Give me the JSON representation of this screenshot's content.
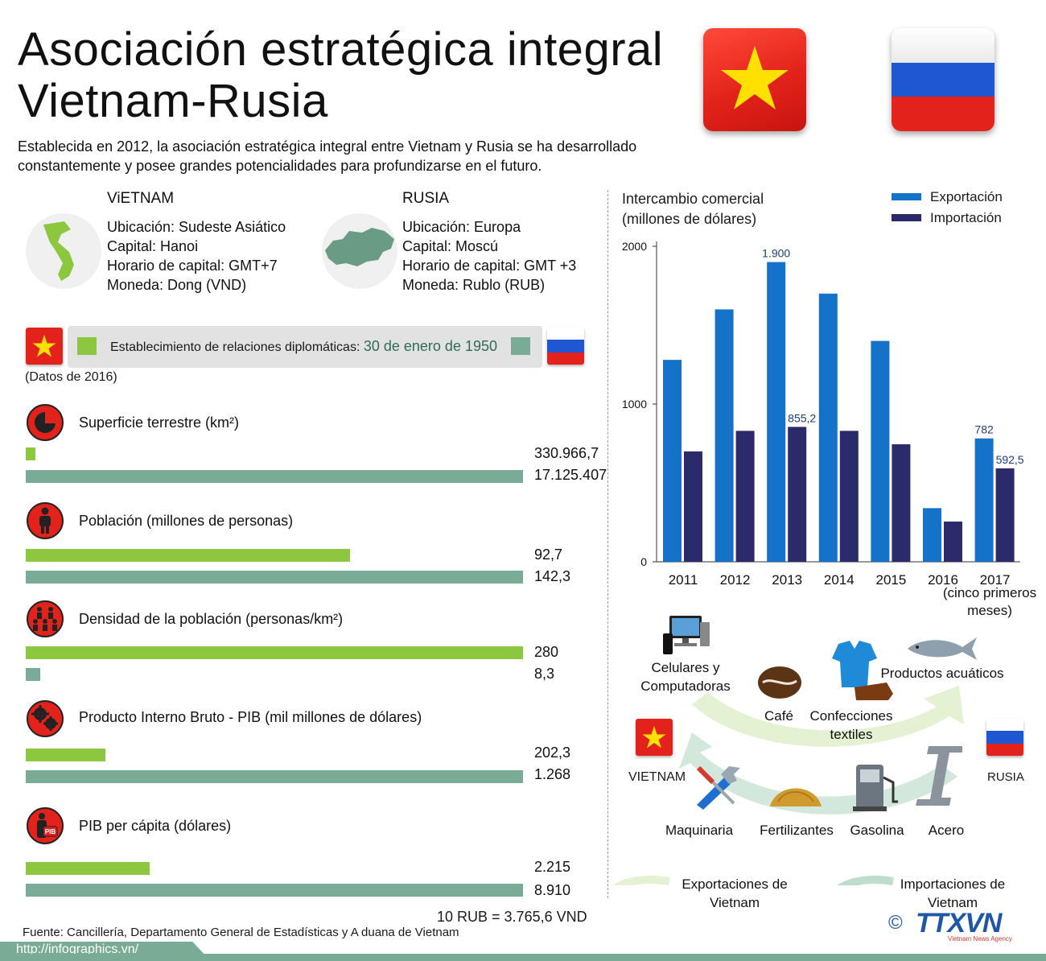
{
  "header": {
    "title": "Asociación estratégica integral Vietnam-Rusia",
    "subtitle": "Establecida en 2012, la asociación estratégica integral entre Vietnam y Rusia se ha desarrollado constantemente y posee grandes potencialidades para profundizarse en el futuro."
  },
  "countries": {
    "vietnam": {
      "name": "ViETNAM",
      "ubicacion": "Ubicación: Sudeste Asiático",
      "capital": "Capital: Hanoi",
      "horario": "Horario de capital: GMT+7",
      "moneda": "Moneda: Dong (VND)"
    },
    "rusia": {
      "name": "RUSIA",
      "ubicacion": "Ubicación: Europa",
      "capital": "Capital: Moscú",
      "horario": "Horario de capital: GMT +3",
      "moneda": "Moneda: Rublo (RUB)"
    }
  },
  "diplomatic": {
    "label": "Establecimiento de relaciones diplomáticas:",
    "date": "30 de enero de 1950"
  },
  "data_year_note": "(Datos de 2016)",
  "stats": [
    {
      "label": "Superficie terrestre (km²)",
      "vn_value": "330.966,7",
      "ru_value": "17.125.407",
      "vn_num": 330966.7,
      "ru_num": 17125407,
      "icon": "pie-chart-icon"
    },
    {
      "label": "Población (millones de personas)",
      "vn_value": "92,7",
      "ru_value": "142,3",
      "vn_num": 92.7,
      "ru_num": 142.3,
      "icon": "person-icon"
    },
    {
      "label": "Densidad de la población (personas/km²)",
      "vn_value": "280",
      "ru_value": "8,3",
      "vn_num": 280,
      "ru_num": 8.3,
      "icon": "people-group-icon"
    },
    {
      "label": "Producto Interno Bruto - PIB (mil millones de dólares)",
      "vn_value": "202,3",
      "ru_value": "1.268",
      "vn_num": 202.3,
      "ru_num": 1268,
      "icon": "gears-icon"
    },
    {
      "label": "PIB per cápita (dólares)",
      "vn_value": "2.215",
      "ru_value": "8.910",
      "vn_num": 2215,
      "ru_num": 8910,
      "icon": "pib-person-icon"
    }
  ],
  "exchange_rate": "10 RUB = 3.765,6 VND",
  "source": "Fuente: Cancillería, Departamento General de Estadísticas y A duana de Vietnam",
  "url": "http://infographics.vn/",
  "chart_data": {
    "type": "bar",
    "title": "Intercambio comercial",
    "subtitle": "(millones de dólares)",
    "categories": [
      "2011",
      "2012",
      "2013",
      "2014",
      "2015",
      "2016",
      "2017"
    ],
    "category_note": "(cinco primeros meses)",
    "series": [
      {
        "name": "Exportación",
        "color": "#1473c8",
        "values": [
          1280,
          1600,
          1900,
          1700,
          1400,
          340,
          782
        ]
      },
      {
        "name": "Importación",
        "color": "#2b2a6b",
        "values": [
          700,
          830,
          855.2,
          830,
          745,
          255,
          592.5
        ]
      }
    ],
    "data_labels": {
      "2013-export": "1.900",
      "2013-import": "855,2",
      "2017-export": "782",
      "2017-import": "592,5"
    },
    "yticks": [
      "0",
      "1000",
      "2000"
    ],
    "ylim": [
      0,
      2000
    ],
    "legend_position": "top-right",
    "grid": false
  },
  "exchange": {
    "vn_label": "VIETNAM",
    "ru_label": "RUSIA",
    "exports": [
      "Celulares y Computadoras",
      "Café",
      "Confecciones textiles",
      "Productos acuáticos"
    ],
    "imports": [
      "Maquinaria",
      "Fertilizantes",
      "Gasolina",
      "Acero"
    ],
    "legend_export": "Exportaciones de Vietnam",
    "legend_import": "Importaciones de Vietnam",
    "logo": "TTXVN",
    "logo_sub": "Vietnam News Agency",
    "copyright": "©"
  },
  "colors": {
    "vn_bar": "#8dc63f",
    "ru_bar": "#7aab96",
    "accent_red": "#e3231b"
  }
}
